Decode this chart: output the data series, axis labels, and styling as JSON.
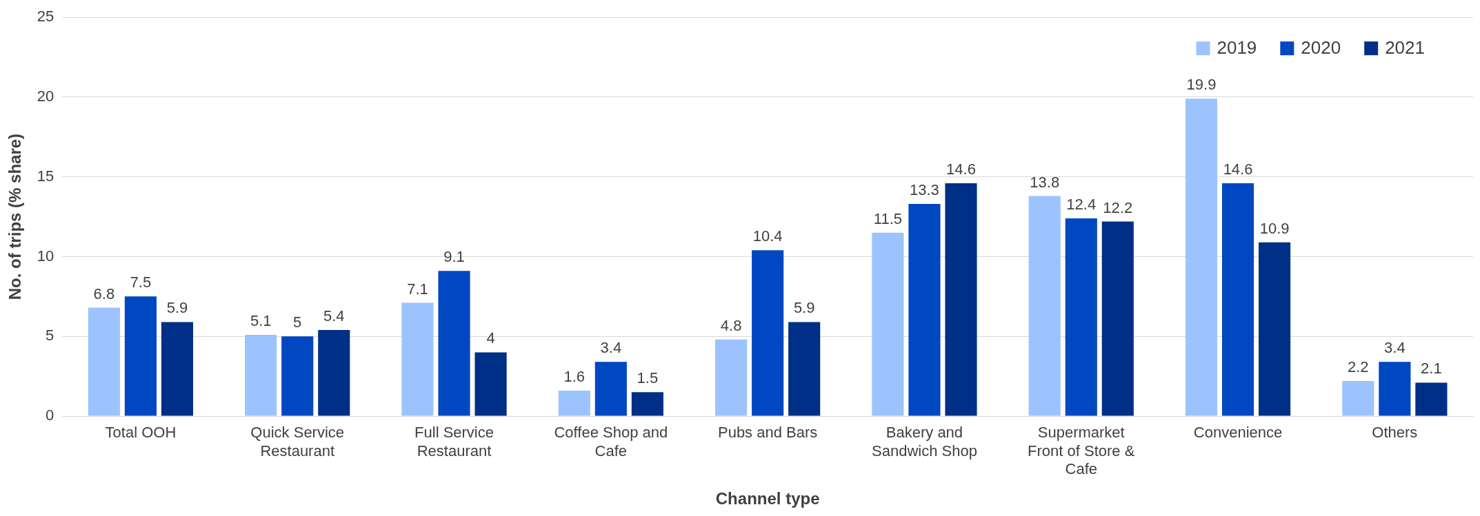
{
  "chart_data": {
    "type": "bar",
    "xlabel": "Channel type",
    "ylabel": "No. of trips (% share)",
    "categories": [
      "Total OOH",
      "Quick Service Restaurant",
      "Full Service Restaurant",
      "Coffee Shop and Cafe",
      "Pubs and Bars",
      "Bakery and Sandwich Shop",
      "Supermarket Front of Store & Cafe",
      "Convenience",
      "Others"
    ],
    "series": [
      {
        "name": "2019",
        "color": "#9dc3ff",
        "values": [
          6.8,
          5.1,
          7.1,
          1.6,
          4.8,
          11.5,
          13.8,
          19.9,
          2.2
        ]
      },
      {
        "name": "2020",
        "color": "#0047c2",
        "values": [
          7.5,
          5,
          9.1,
          3.4,
          10.4,
          13.3,
          12.4,
          14.6,
          3.4
        ]
      },
      {
        "name": "2021",
        "color": "#002f87",
        "values": [
          5.9,
          5.4,
          4,
          1.5,
          5.9,
          14.6,
          12.2,
          10.9,
          2.1
        ]
      }
    ],
    "ylim": [
      0,
      25
    ],
    "yticks": [
      0,
      5,
      10,
      15,
      20,
      25
    ],
    "grid": "y",
    "legend": "top right",
    "data_labels": true
  }
}
